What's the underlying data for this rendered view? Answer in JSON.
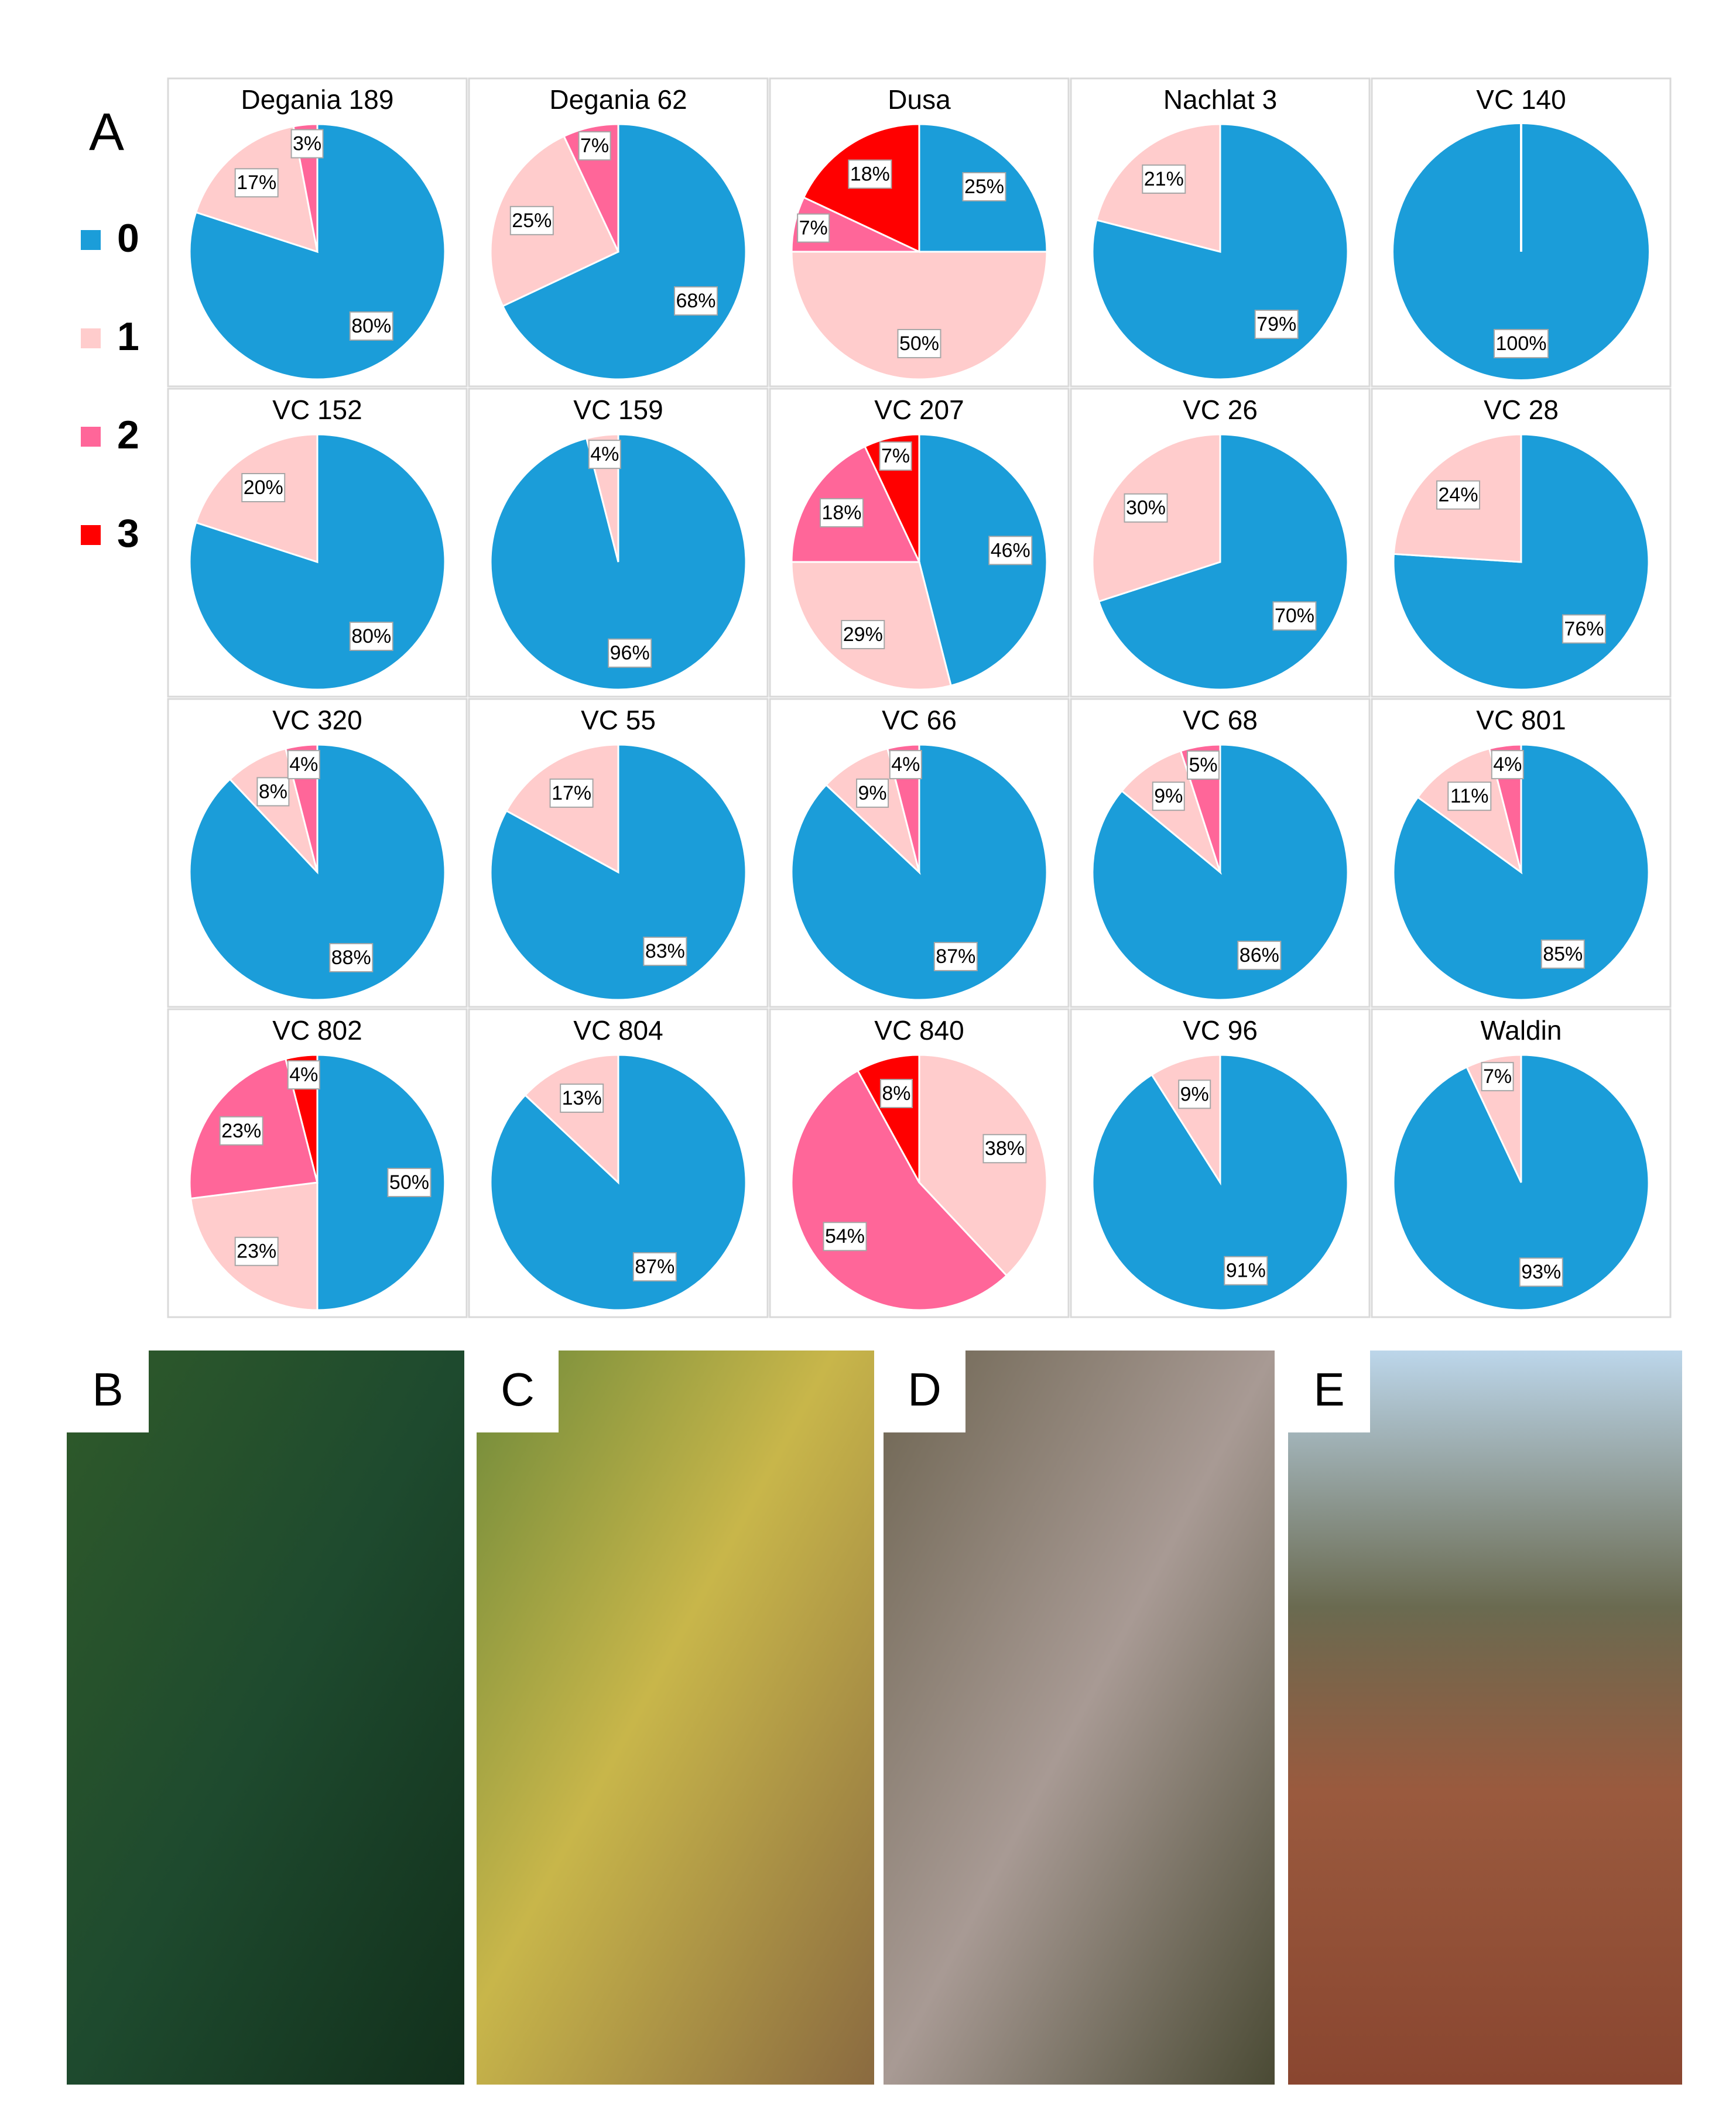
{
  "panel_label": "A",
  "legend": {
    "categories": [
      "0",
      "1",
      "2",
      "3"
    ],
    "colors": [
      "#1b9dd9",
      "#ffcccc",
      "#ff6699",
      "#ff0000"
    ]
  },
  "chart_data": [
    {
      "type": "pie",
      "title": "Degania 189",
      "values": [
        80,
        17,
        3,
        null
      ],
      "value_labels": [
        "80%",
        "17%",
        "3%",
        null
      ]
    },
    {
      "type": "pie",
      "title": "Degania 62",
      "values": [
        68,
        25,
        7,
        null
      ],
      "value_labels": [
        "68%",
        "25%",
        "7%",
        null
      ]
    },
    {
      "type": "pie",
      "title": "Dusa",
      "values": [
        25,
        50,
        7,
        18
      ],
      "value_labels": [
        "25%",
        "50%",
        "7%",
        "18%"
      ]
    },
    {
      "type": "pie",
      "title": "Nachlat 3",
      "values": [
        79,
        21,
        null,
        null
      ],
      "value_labels": [
        "79%",
        "21%",
        null,
        null
      ]
    },
    {
      "type": "pie",
      "title": "VC 140",
      "values": [
        100,
        null,
        null,
        null
      ],
      "value_labels": [
        "100%",
        null,
        null,
        null
      ]
    },
    {
      "type": "pie",
      "title": "VC 152",
      "values": [
        80,
        20,
        null,
        null
      ],
      "value_labels": [
        "80%",
        "20%",
        null,
        null
      ]
    },
    {
      "type": "pie",
      "title": "VC 159",
      "values": [
        96,
        4,
        null,
        null
      ],
      "value_labels": [
        "96%",
        "4%",
        null,
        null
      ]
    },
    {
      "type": "pie",
      "title": "VC 207",
      "values": [
        46,
        29,
        18,
        7
      ],
      "value_labels": [
        "46%",
        "29%",
        "18%",
        "7%"
      ]
    },
    {
      "type": "pie",
      "title": "VC 26",
      "values": [
        70,
        30,
        null,
        null
      ],
      "value_labels": [
        "70%",
        "30%",
        null,
        null
      ]
    },
    {
      "type": "pie",
      "title": "VC 28",
      "values": [
        76,
        24,
        null,
        null
      ],
      "value_labels": [
        "76%",
        "24%",
        null,
        null
      ]
    },
    {
      "type": "pie",
      "title": "VC 320",
      "values": [
        88,
        8,
        4,
        null
      ],
      "value_labels": [
        "88%",
        "8%",
        "4%",
        null
      ]
    },
    {
      "type": "pie",
      "title": "VC 55",
      "values": [
        83,
        17,
        null,
        null
      ],
      "value_labels": [
        "83%",
        "17%",
        null,
        null
      ]
    },
    {
      "type": "pie",
      "title": "VC 66",
      "values": [
        87,
        9,
        4,
        null
      ],
      "value_labels": [
        "87%",
        "9%",
        "4%",
        null
      ]
    },
    {
      "type": "pie",
      "title": "VC 68",
      "values": [
        86,
        9,
        5,
        null
      ],
      "value_labels": [
        "86%",
        "9%",
        "5%",
        null
      ]
    },
    {
      "type": "pie",
      "title": "VC 801",
      "values": [
        85,
        11,
        4,
        null
      ],
      "value_labels": [
        "85%",
        "11%",
        "4%",
        null
      ]
    },
    {
      "type": "pie",
      "title": "VC 802",
      "values": [
        50,
        23,
        23,
        4
      ],
      "value_labels": [
        "50%",
        "23%",
        "23%",
        "4%"
      ]
    },
    {
      "type": "pie",
      "title": "VC 804",
      "values": [
        87,
        13,
        null,
        null
      ],
      "value_labels": [
        "87%",
        "13%",
        null,
        null
      ]
    },
    {
      "type": "pie",
      "title": "VC 840",
      "values": [
        null,
        38,
        54,
        8
      ],
      "value_labels": [
        null,
        "38%",
        "54%",
        "8%"
      ]
    },
    {
      "type": "pie",
      "title": "VC 96",
      "values": [
        91,
        9,
        null,
        null
      ],
      "value_labels": [
        "91%",
        "9%",
        null,
        null
      ]
    },
    {
      "type": "pie",
      "title": "Waldin",
      "values": [
        93,
        7,
        null,
        null
      ],
      "value_labels": [
        "93%",
        "7%",
        null,
        null
      ]
    }
  ],
  "photos": [
    {
      "label": "B"
    },
    {
      "label": "C"
    },
    {
      "label": "D"
    },
    {
      "label": "E"
    }
  ]
}
